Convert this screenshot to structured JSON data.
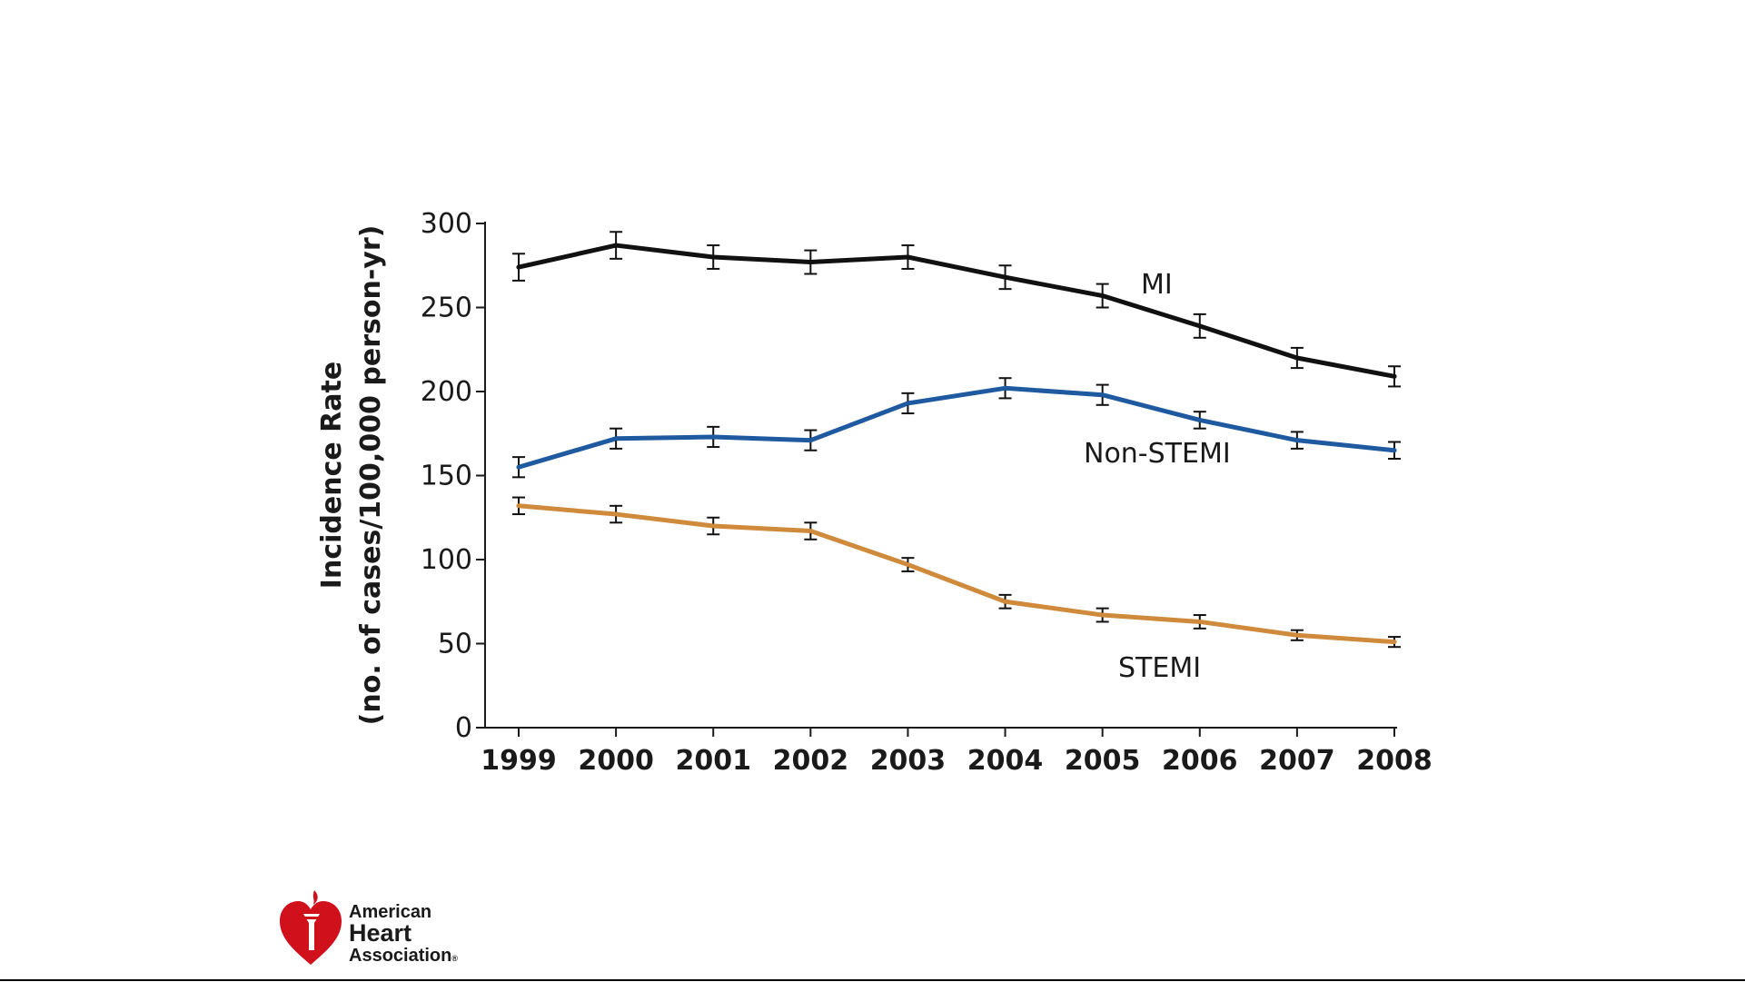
{
  "chart_data": {
    "type": "line",
    "title": "",
    "xlabel": "",
    "ylabel_line1": "Incidence Rate",
    "ylabel_line2": "(no. of cases/100,000 person-yr)",
    "x": [
      "1999",
      "2000",
      "2001",
      "2002",
      "2003",
      "2004",
      "2005",
      "2006",
      "2007",
      "2008"
    ],
    "yticks": [
      0,
      50,
      100,
      150,
      200,
      250,
      300
    ],
    "ylim": [
      0,
      300
    ],
    "grid": false,
    "series": [
      {
        "name": "MI",
        "color": "#111111",
        "values": [
          274,
          287,
          280,
          277,
          280,
          268,
          257,
          239,
          220,
          209
        ],
        "error": [
          8,
          8,
          7,
          7,
          7,
          7,
          7,
          7,
          6,
          6
        ]
      },
      {
        "name": "Non-STEMI",
        "color": "#1f5aa0",
        "values": [
          155,
          172,
          173,
          171,
          193,
          202,
          198,
          183,
          171,
          165
        ],
        "error": [
          6,
          6,
          6,
          6,
          6,
          6,
          6,
          5,
          5,
          5
        ]
      },
      {
        "name": "STEMI",
        "color": "#cf8a3c",
        "values": [
          132,
          127,
          120,
          117,
          97,
          75,
          67,
          63,
          55,
          51
        ],
        "error": [
          5,
          5,
          5,
          5,
          4,
          4,
          4,
          4,
          3,
          3
        ]
      }
    ]
  },
  "logo": {
    "line1": "American",
    "line2": "Heart",
    "line3": "Association",
    "mark": "®",
    "icon": "heart-torch-icon",
    "color": "#d0101b"
  }
}
